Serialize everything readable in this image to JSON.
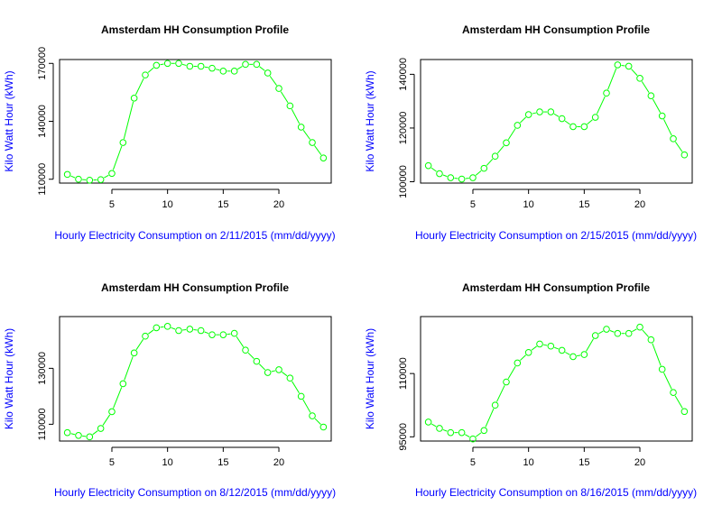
{
  "chart_data": [
    {
      "type": "line",
      "title": "Amsterdam HH Consumption Profile",
      "xlabel": "Hourly Electricity Consumption on 2/11/2015 (mm/dd/yyyy)",
      "ylabel": "Kilo Watt Hour (kWh)",
      "x": [
        1,
        2,
        3,
        4,
        5,
        6,
        7,
        8,
        9,
        10,
        11,
        12,
        13,
        14,
        15,
        16,
        17,
        18,
        19,
        20,
        21,
        22,
        23,
        24
      ],
      "series": [
        {
          "values": [
            112500,
            110000,
            109500,
            109800,
            113000,
            129000,
            152000,
            164000,
            169000,
            170000,
            170000,
            168500,
            168500,
            167500,
            166000,
            166000,
            169500,
            169500,
            165000,
            157000,
            148000,
            137000,
            129000,
            121000
          ]
        }
      ],
      "xticks": [
        5,
        10,
        15,
        20
      ],
      "yticks": [
        110000,
        140000,
        170000
      ],
      "ylim": [
        108000,
        172000
      ],
      "xlim": [
        0.3,
        24.7
      ],
      "color": "#00ff00",
      "grid": false,
      "legend": "none"
    },
    {
      "type": "line",
      "title": "Amsterdam HH Consumption Profile",
      "xlabel": "Hourly Electricity Consumption on 2/15/2015 (mm/dd/yyyy)",
      "ylabel": "Kilo Watt Hour (kWh)",
      "x": [
        1,
        2,
        3,
        4,
        5,
        6,
        7,
        8,
        9,
        10,
        11,
        12,
        13,
        14,
        15,
        16,
        17,
        18,
        19,
        20,
        21,
        22,
        23,
        24
      ],
      "series": [
        {
          "values": [
            106000,
            103000,
            101500,
            101000,
            101500,
            105000,
            109500,
            114500,
            121000,
            125000,
            126000,
            126000,
            123500,
            120500,
            120500,
            124000,
            133000,
            143500,
            143000,
            138500,
            132000,
            124500,
            116000,
            110000
          ]
        }
      ],
      "xticks": [
        5,
        10,
        15,
        20
      ],
      "yticks": [
        100000,
        120000,
        140000
      ],
      "ylim": [
        99500,
        145500
      ],
      "xlim": [
        0.3,
        24.7
      ],
      "color": "#00ff00",
      "grid": false,
      "legend": "none"
    },
    {
      "type": "line",
      "title": "Amsterdam HH Consumption Profile",
      "xlabel": "Hourly Electricity Consumption on 8/12/2015 (mm/dd/yyyy)",
      "ylabel": "Kilo Watt Hour (kWh)",
      "x": [
        1,
        2,
        3,
        4,
        5,
        6,
        7,
        8,
        9,
        10,
        11,
        12,
        13,
        14,
        15,
        16,
        17,
        18,
        19,
        20,
        21,
        22,
        23,
        24
      ],
      "series": [
        {
          "values": [
            107000,
            106000,
            105500,
            108500,
            114500,
            124500,
            135500,
            141500,
            144500,
            145000,
            143500,
            144000,
            143500,
            142000,
            142000,
            142500,
            136500,
            132500,
            128500,
            129500,
            126500,
            120000,
            113000,
            109000
          ]
        }
      ],
      "xticks": [
        5,
        10,
        15,
        20
      ],
      "yticks": [
        110000,
        130000
      ],
      "ylim": [
        104000,
        148500
      ],
      "xlim": [
        0.3,
        24.7
      ],
      "color": "#00ff00",
      "grid": false,
      "legend": "none"
    },
    {
      "type": "line",
      "title": "Amsterdam HH Consumption Profile",
      "xlabel": "Hourly Electricity Consumption on 8/16/2015 (mm/dd/yyyy)",
      "ylabel": "Kilo Watt Hour (kWh)",
      "x": [
        1,
        2,
        3,
        4,
        5,
        6,
        7,
        8,
        9,
        10,
        11,
        12,
        13,
        14,
        15,
        16,
        17,
        18,
        19,
        20,
        21,
        22,
        23,
        24
      ],
      "series": [
        {
          "values": [
            98500,
            97000,
            96000,
            96000,
            94500,
            96500,
            102500,
            108000,
            112500,
            115000,
            117000,
            116500,
            115500,
            114000,
            114500,
            119000,
            120500,
            119500,
            119500,
            121000,
            118000,
            111000,
            105500,
            101000
          ]
        }
      ],
      "xticks": [
        5,
        10,
        15,
        20
      ],
      "yticks": [
        95000,
        110000
      ],
      "ylim": [
        94000,
        123500
      ],
      "xlim": [
        0.3,
        24.7
      ],
      "color": "#00ff00",
      "grid": false,
      "legend": "none"
    }
  ]
}
